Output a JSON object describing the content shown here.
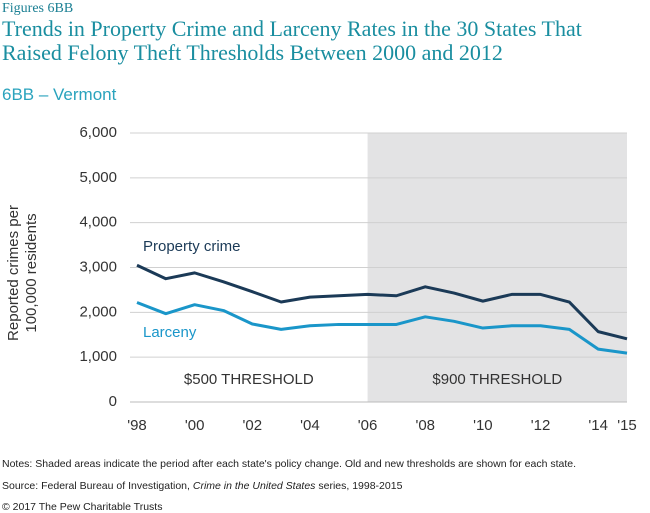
{
  "chart_data": {
    "type": "line",
    "label": "Figures 6BB",
    "title": "Trends in Property Crime and Larceny Rates in the 30 States That Raised Felony Theft Thresholds Between 2000 and 2012",
    "subtitle": "6BB – Vermont",
    "y_label": "Reported crimes per 100,000 residents",
    "x": [
      1998,
      1999,
      2000,
      2001,
      2002,
      2003,
      2004,
      2005,
      2006,
      2007,
      2008,
      2009,
      2010,
      2011,
      2012,
      2013,
      2014,
      2015
    ],
    "series": [
      {
        "name": "Property crime",
        "color": "#1b3a57",
        "values": [
          3050,
          2750,
          2880,
          2680,
          2460,
          2230,
          2340,
          2370,
          2400,
          2370,
          2570,
          2430,
          2250,
          2400,
          2400,
          2230,
          1570,
          1410
        ]
      },
      {
        "name": "Larceny",
        "color": "#1a96c9",
        "values": [
          2220,
          1970,
          2170,
          2040,
          1740,
          1620,
          1700,
          1730,
          1730,
          1730,
          1900,
          1800,
          1650,
          1700,
          1700,
          1620,
          1180,
          1090
        ]
      }
    ],
    "periods": [
      {
        "label": "$500 THRESHOLD",
        "start": 1998,
        "end": 2006,
        "shaded": false
      },
      {
        "label": "$900 THRESHOLD",
        "start": 2006,
        "end": 2015,
        "shaded": true
      }
    ],
    "xlim": [
      1998,
      2015
    ],
    "xticks": [
      {
        "value": 1998,
        "label": "'98"
      },
      {
        "value": 2000,
        "label": "'00"
      },
      {
        "value": 2002,
        "label": "'02"
      },
      {
        "value": 2004,
        "label": "'04"
      },
      {
        "value": 2006,
        "label": "'06"
      },
      {
        "value": 2008,
        "label": "'08"
      },
      {
        "value": 2010,
        "label": "'10"
      },
      {
        "value": 2012,
        "label": "'12"
      },
      {
        "value": 2014,
        "label": "'14"
      },
      {
        "value": 2015,
        "label": "'15"
      }
    ],
    "ylim": [
      0,
      6000
    ],
    "yticks": [
      0,
      {
        "value": 1000,
        "label": "1,000"
      },
      {
        "value": 2000,
        "label": "2,000"
      },
      {
        "value": 3000,
        "label": "3,000"
      },
      {
        "value": 4000,
        "label": "4,000"
      },
      {
        "value": 5000,
        "label": "5,000"
      },
      {
        "value": 6000,
        "label": "6,000"
      }
    ],
    "grid": true,
    "notes": "Notes: Shaded areas indicate the period after each state's policy change. Old and new thresholds are shown for each state.",
    "source": {
      "prefix": "Source: Federal Bureau of Investigation, ",
      "italic": "Crime in the United States",
      "suffix": " series, 1998-2015"
    },
    "copyright": "© 2017 The Pew Charitable Trusts"
  }
}
